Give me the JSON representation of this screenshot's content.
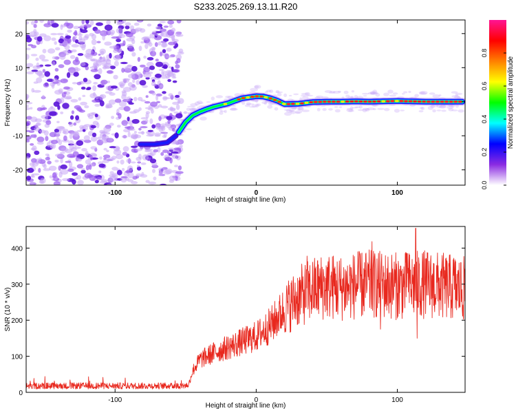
{
  "page_title": "S233.2025.269.13.11.R20",
  "chart_data": [
    {
      "type": "heatmap",
      "title": "S233.2025.269.13.11.R20",
      "xlabel": "Height of straight line (km)",
      "ylabel": "Frequency (Hz)",
      "xlim": [
        -163,
        148
      ],
      "ylim": [
        -24.5,
        24
      ],
      "xticks": [
        -100,
        0,
        100
      ],
      "xtick_labels": [
        "-100",
        "0",
        "100"
      ],
      "yticks": [
        20,
        10,
        0,
        -10,
        -20
      ],
      "ytick_labels": [
        "20",
        "10",
        "0",
        "-10",
        "-20"
      ],
      "noise_region_x": [
        -163,
        -55
      ],
      "ridge_track": {
        "x": [
          -55,
          -50,
          -45,
          -40,
          -35,
          -30,
          -25,
          -20,
          -15,
          -10,
          -5,
          0,
          5,
          10,
          15,
          20,
          30,
          40,
          50,
          60,
          70,
          80,
          90,
          100,
          110,
          120,
          130,
          140,
          146
        ],
        "y": [
          -9,
          -6,
          -4,
          -3,
          -2.2,
          -1.5,
          -1,
          -0.5,
          0.3,
          1,
          1.3,
          1.6,
          1.5,
          1,
          0.3,
          -0.7,
          -0.6,
          -0.1,
          0,
          0,
          0.1,
          0,
          0.1,
          0.2,
          0.1,
          0,
          0,
          0,
          0
        ]
      },
      "low_branch": {
        "x": [
          -82,
          -72,
          -63,
          -57
        ],
        "y": [
          -12.5,
          -12.5,
          -12,
          -10
        ]
      },
      "colorbar": {
        "label": "Normalized spectral amplitude",
        "range": [
          0,
          1
        ],
        "ticks": [
          0.0,
          0.2,
          0.4,
          0.6,
          0.8
        ],
        "tick_labels": [
          "0.0",
          "0.2",
          "0.4",
          "0.6",
          "0.8"
        ],
        "stops": [
          "#ffffff",
          "#8a2be2",
          "#0000ff",
          "#00ffff",
          "#00ff00",
          "#ffff00",
          "#ff8000",
          "#ff0000",
          "#ff1493"
        ]
      }
    },
    {
      "type": "line",
      "xlabel": "Height of straight line (km)",
      "ylabel": "SNR (10 * v/v)",
      "xlim": [
        -163,
        148
      ],
      "ylim": [
        0,
        460
      ],
      "xticks": [
        -100,
        0,
        100
      ],
      "xtick_labels": [
        "-100",
        "0",
        "100"
      ],
      "yticks": [
        0,
        100,
        200,
        300,
        400
      ],
      "ytick_labels": [
        "0",
        "100",
        "200",
        "300",
        "400"
      ],
      "line_color": "#e8281e",
      "envelope": {
        "x": [
          -163,
          -130,
          -100,
          -70,
          -55,
          -48,
          -45,
          -40,
          -30,
          -20,
          -10,
          0,
          10,
          20,
          30,
          40,
          50,
          60,
          80,
          100,
          120,
          140,
          148
        ],
        "y": [
          18,
          18,
          18,
          18,
          18,
          20,
          60,
          90,
          110,
          125,
          140,
          155,
          185,
          230,
          265,
          285,
          295,
          290,
          300,
          295,
          300,
          290,
          285
        ]
      },
      "spikes": [
        {
          "x": 113,
          "y": 455
        },
        {
          "x": 82,
          "y": 418
        },
        {
          "x": 36,
          "y": 378
        },
        {
          "x": 107,
          "y": 385
        },
        {
          "x": 72,
          "y": 390
        },
        {
          "x": 140,
          "y": 372
        },
        {
          "x": 114,
          "y": 150
        },
        {
          "x": 88,
          "y": 175
        },
        {
          "x": 145,
          "y": 360
        }
      ]
    }
  ]
}
